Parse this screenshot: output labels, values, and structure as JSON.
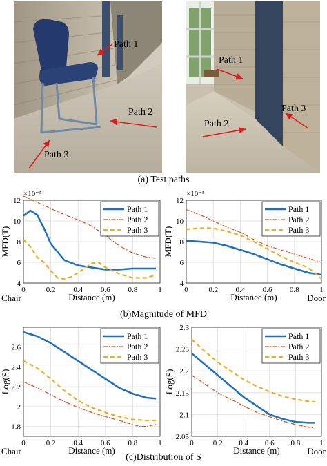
{
  "photos": {
    "left": {
      "labels": [
        "Path 1",
        "Path 2",
        "Path 3"
      ]
    },
    "right": {
      "labels": [
        "Path 1",
        "Path 2",
        "Path 3"
      ]
    }
  },
  "captions": {
    "a": "(a) Test paths",
    "b": "(b)Magnitude of MFD",
    "c": "(c)Distribution of S"
  },
  "colors": {
    "path1": "#1f6fbf",
    "path2": "#cc4c1a",
    "path3": "#e8b021",
    "arrow": "#e11a1a"
  },
  "chart_data": [
    {
      "type": "line",
      "ylabel": "MFD(T)",
      "xlabel": "Distance (m)",
      "y_exponent": "×10⁻⁵",
      "start_label": "Chair",
      "xlim": [
        0,
        1
      ],
      "ylim": [
        4,
        12
      ],
      "xticks": [
        "0",
        "0.2",
        "0.4",
        "0.6",
        "0.8",
        "1"
      ],
      "yticks": [
        "4",
        "6",
        "8",
        "10",
        "12"
      ],
      "legend": "top-right",
      "series": [
        {
          "name": "Path 1",
          "x": [
            0,
            0.05,
            0.1,
            0.15,
            0.2,
            0.3,
            0.4,
            0.5,
            0.6,
            0.7,
            0.8,
            0.9,
            0.97
          ],
          "y": [
            10.5,
            11.0,
            10.6,
            9.3,
            7.8,
            6.2,
            5.7,
            5.5,
            5.3,
            5.3,
            5.4,
            5.4,
            5.4
          ]
        },
        {
          "name": "Path 2",
          "x": [
            0,
            0.1,
            0.2,
            0.3,
            0.4,
            0.5,
            0.6,
            0.7,
            0.8,
            0.9,
            0.97
          ],
          "y": [
            12.4,
            11.8,
            11.2,
            10.6,
            10.1,
            9.5,
            8.6,
            7.6,
            6.9,
            6.5,
            6.4
          ]
        },
        {
          "name": "Path 3",
          "x": [
            0,
            0.05,
            0.1,
            0.15,
            0.2,
            0.25,
            0.3,
            0.35,
            0.4,
            0.5,
            0.55,
            0.6,
            0.7,
            0.8,
            0.9,
            0.97
          ],
          "y": [
            8.2,
            7.5,
            6.5,
            6.0,
            5.2,
            4.5,
            4.4,
            4.6,
            5.0,
            5.9,
            6.0,
            5.5,
            4.9,
            4.5,
            4.5,
            4.8
          ]
        }
      ]
    },
    {
      "type": "line",
      "ylabel": "MFD(T)",
      "xlabel": "Distance (m)",
      "y_exponent": "×10⁻⁵",
      "end_label": "Door",
      "xlim": [
        0,
        1
      ],
      "ylim": [
        4,
        12
      ],
      "xticks": [
        "0",
        "0.2",
        "0.4",
        "0.6",
        "0.8",
        "1"
      ],
      "yticks": [
        "4",
        "6",
        "8",
        "10",
        "12"
      ],
      "legend": "top-right",
      "series": [
        {
          "name": "Path 1",
          "x": [
            0,
            0.1,
            0.2,
            0.3,
            0.4,
            0.5,
            0.6,
            0.7,
            0.8,
            0.9,
            1.0
          ],
          "y": [
            8.1,
            8.0,
            7.9,
            7.6,
            7.2,
            6.8,
            6.3,
            5.8,
            5.4,
            5.0,
            4.8
          ]
        },
        {
          "name": "Path 2",
          "x": [
            0,
            0.1,
            0.2,
            0.3,
            0.4,
            0.5,
            0.6,
            0.7,
            0.8,
            0.9,
            1.0
          ],
          "y": [
            11.1,
            10.6,
            10.0,
            9.4,
            8.9,
            8.2,
            7.6,
            7.2,
            6.8,
            6.4,
            6.0
          ]
        },
        {
          "name": "Path 3",
          "x": [
            0,
            0.1,
            0.2,
            0.3,
            0.4,
            0.5,
            0.6,
            0.7,
            0.8,
            0.9,
            0.95,
            1.0
          ],
          "y": [
            9.2,
            9.3,
            9.3,
            9.0,
            8.6,
            8.0,
            7.3,
            6.6,
            6.0,
            5.5,
            5.0,
            4.4
          ]
        }
      ]
    },
    {
      "type": "line",
      "ylabel": "Log(S)",
      "xlabel": "Distance (m)",
      "start_label": "Chair",
      "xlim": [
        0,
        1
      ],
      "ylim": [
        1.7,
        2.8
      ],
      "xticks": [
        "0",
        "0.2",
        "0.4",
        "0.6",
        "0.8",
        "1"
      ],
      "yticks": [
        "1.8",
        "2",
        "2.2",
        "2.4",
        "2.6"
      ],
      "legend": "top-right",
      "series": [
        {
          "name": "Path 1",
          "x": [
            0,
            0.1,
            0.2,
            0.3,
            0.4,
            0.5,
            0.6,
            0.7,
            0.8,
            0.9,
            0.97
          ],
          "y": [
            2.75,
            2.71,
            2.64,
            2.55,
            2.46,
            2.37,
            2.28,
            2.19,
            2.13,
            2.09,
            2.08
          ]
        },
        {
          "name": "Path 2",
          "x": [
            0,
            0.1,
            0.2,
            0.3,
            0.4,
            0.5,
            0.6,
            0.7,
            0.8,
            0.85,
            0.9,
            0.97
          ],
          "y": [
            2.25,
            2.19,
            2.12,
            2.05,
            1.99,
            1.94,
            1.9,
            1.86,
            1.82,
            1.8,
            1.8,
            1.82
          ]
        },
        {
          "name": "Path 3",
          "x": [
            0,
            0.1,
            0.2,
            0.3,
            0.4,
            0.5,
            0.6,
            0.7,
            0.8,
            0.9,
            0.97
          ],
          "y": [
            2.46,
            2.39,
            2.28,
            2.16,
            2.06,
            1.99,
            1.94,
            1.9,
            1.87,
            1.86,
            1.86
          ]
        }
      ]
    },
    {
      "type": "line",
      "ylabel": "Log(S)",
      "xlabel": "Distance (m)",
      "end_label": "Door",
      "xlim": [
        0,
        1
      ],
      "ylim": [
        2.05,
        2.3
      ],
      "xticks": [
        "0",
        "0.2",
        "0.4",
        "0.6",
        "0.8",
        "1"
      ],
      "yticks": [
        "2.05",
        "2.1",
        "2.15",
        "2.2",
        "2.25",
        "2.3"
      ],
      "legend": "top-right",
      "series": [
        {
          "name": "Path 1",
          "x": [
            0,
            0.1,
            0.2,
            0.3,
            0.4,
            0.5,
            0.6,
            0.7,
            0.8,
            0.9,
            0.95
          ],
          "y": [
            2.24,
            2.215,
            2.19,
            2.165,
            2.14,
            2.12,
            2.1,
            2.09,
            2.083,
            2.081,
            2.081
          ]
        },
        {
          "name": "Path 2",
          "x": [
            0,
            0.1,
            0.2,
            0.3,
            0.4,
            0.5,
            0.6,
            0.7,
            0.8,
            0.9,
            0.95
          ],
          "y": [
            2.19,
            2.17,
            2.15,
            2.135,
            2.12,
            2.105,
            2.095,
            2.085,
            2.077,
            2.071,
            2.069
          ]
        },
        {
          "name": "Path 3",
          "x": [
            0,
            0.1,
            0.2,
            0.3,
            0.4,
            0.5,
            0.6,
            0.7,
            0.8,
            0.9,
            0.95
          ],
          "y": [
            2.272,
            2.245,
            2.22,
            2.2,
            2.18,
            2.165,
            2.152,
            2.142,
            2.135,
            2.13,
            2.129
          ]
        }
      ]
    }
  ]
}
